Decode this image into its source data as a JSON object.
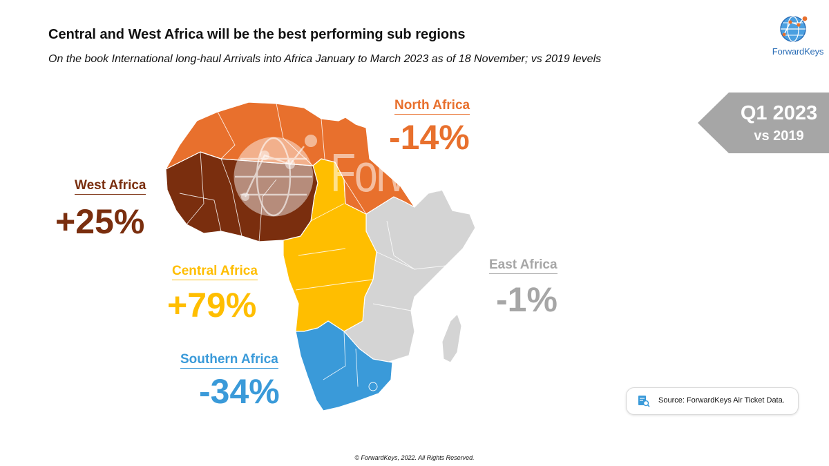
{
  "title": "Central and West Africa will be the best performing sub regions",
  "subtitle": "On the book International long-haul Arrivals into Africa January to March 2023 as of 18 November; vs 2019 levels",
  "logo": {
    "text": "ForwardKeys",
    "icon": "globe-network-icon"
  },
  "badge": {
    "line1": "Q1 2023",
    "line2": "vs 2019",
    "color": "#a6a6a6"
  },
  "watermark": "ForwardKeys",
  "regions": {
    "north": {
      "name": "North Africa",
      "value": "-14%",
      "color": "#e8702d"
    },
    "west": {
      "name": "West Africa",
      "value": "+25%",
      "color": "#7a2e0e"
    },
    "central": {
      "name": "Central Africa",
      "value": "+79%",
      "color": "#ffbe00"
    },
    "east": {
      "name": "East Africa",
      "value": "-1%",
      "color": "#a6a6a6",
      "map_color": "#d4d4d4"
    },
    "southern": {
      "name": "Southern Africa",
      "value": "-34%",
      "color": "#3a9ad9"
    }
  },
  "source": {
    "icon": "document-search-icon",
    "text": "Source: ForwardKeys Air Ticket Data."
  },
  "footer": "© ForwardKeys, 2022. All Rights Reserved."
}
